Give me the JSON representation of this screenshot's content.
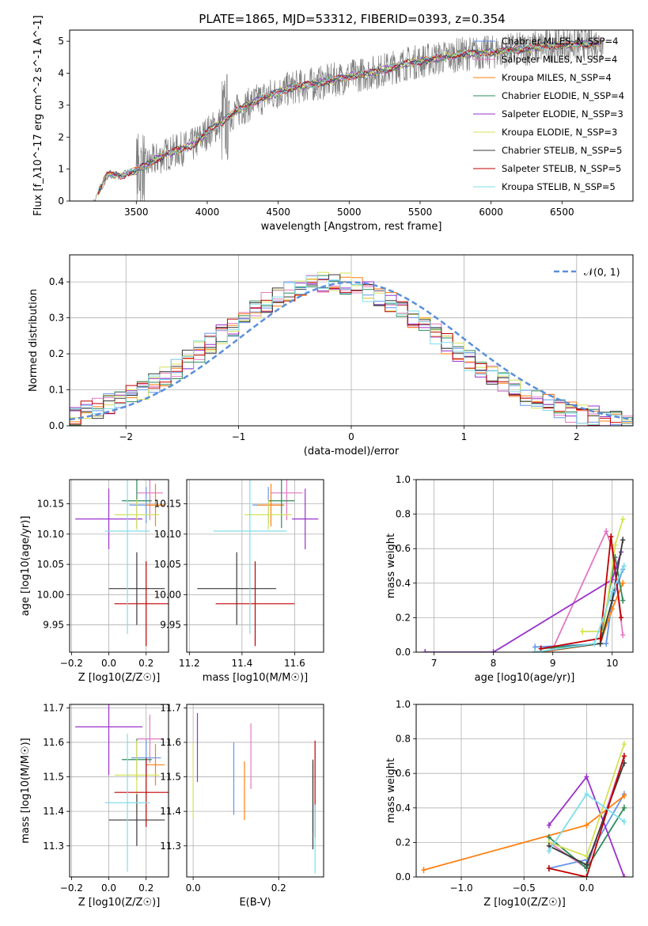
{
  "figure_title": "PLATE=1865, MJD=53312, FIBERID=0393, z=0.354",
  "series_colors": [
    "#6495ed",
    "#e377c2",
    "#ff7f0e",
    "#2e8b57",
    "#9932cc",
    "#d4e157",
    "#3a3a3a",
    "#c00000",
    "#80deea"
  ],
  "chart_data": [
    {
      "id": "spectrum",
      "type": "line",
      "title": "PLATE=1865, MJD=53312, FIBERID=0393, z=0.354",
      "xlabel": "wavelength [Angstrom, rest frame]",
      "ylabel": "Flux [f_λ10^-17 erg cm^-2 s^-1 A^-1]",
      "xlim": [
        3030,
        7000
      ],
      "ylim": [
        0,
        5.35
      ],
      "xticks": [
        "3500",
        "4000",
        "4500",
        "5000",
        "5500",
        "6000",
        "6500"
      ],
      "yticks": [
        "0",
        "1",
        "2",
        "3",
        "4",
        "5"
      ],
      "legend_position": "top-right",
      "legend": [
        "Chabrier MILES, N_SSP=4",
        "Salpeter MILES, N_SSP=4",
        "Kroupa MILES, N_SSP=4",
        "Chabrier ELODIE, N_SSP=4",
        "Salpeter ELODIE, N_SSP=3",
        "Kroupa ELODIE, N_SSP=3",
        "Chabrier STELIB, N_SSP=5",
        "Salpeter STELIB, N_SSP=5",
        "Kroupa STELIB, N_SSP=5"
      ],
      "data_trend": {
        "x": [
          3200,
          3300,
          3400,
          3500,
          3700,
          3900,
          4000,
          4200,
          4400,
          4600,
          4800,
          5000,
          5200,
          5400,
          5600,
          5800,
          6000,
          6200,
          6400,
          6600,
          6780
        ],
        "y": [
          0.0,
          0.85,
          0.8,
          0.95,
          1.45,
          1.75,
          2.15,
          2.8,
          3.25,
          3.55,
          3.7,
          3.9,
          4.05,
          4.3,
          4.45,
          4.6,
          4.65,
          4.75,
          4.85,
          4.9,
          4.95
        ]
      },
      "grid": false
    },
    {
      "id": "residuals",
      "type": "line",
      "xlabel": "(data-model)/error",
      "ylabel": "Normed distribution",
      "xlim": [
        -2.5,
        2.5
      ],
      "ylim": [
        0,
        0.475
      ],
      "xticks": [
        "−2",
        "−1",
        "0",
        "1",
        "2"
      ],
      "yticks": [
        "0.0",
        "0.1",
        "0.2",
        "0.3",
        "0.4"
      ],
      "legend": [
        "𝒩(0, 1)"
      ],
      "legend_position": "top-right",
      "curve": {
        "name": "𝒩(0, 1)",
        "mean": 0,
        "sigma": 1
      },
      "histogram_bin_width": 0.1,
      "grid": true
    },
    {
      "id": "age-vs-z",
      "type": "scatter",
      "xlabel": "Z [log10(Z/Z☉)]",
      "ylabel": "age  [log10(age/yr)]",
      "xlim": [
        -0.21,
        0.32
      ],
      "ylim": [
        9.905,
        10.19
      ],
      "xticks": [
        "−0.2",
        "0.0",
        "0.2"
      ],
      "yticks": [
        "9.95",
        "10.00",
        "10.05",
        "10.10",
        "10.15"
      ],
      "points": [
        {
          "x": 0.2,
          "y": 10.148,
          "xerr": 0.09,
          "yerr": 0.03
        },
        {
          "x": 0.22,
          "y": 10.168,
          "xerr": 0.07,
          "yerr": 0.045
        },
        {
          "x": 0.25,
          "y": 10.148,
          "xerr": 0.05,
          "yerr": 0.035
        },
        {
          "x": 0.15,
          "y": 10.155,
          "xerr": 0.08,
          "yerr": 0.045
        },
        {
          "x": 0.0,
          "y": 10.125,
          "xerr": 0.18,
          "yerr": 0.05
        },
        {
          "x": 0.15,
          "y": 10.132,
          "xerr": 0.12,
          "yerr": 0.025
        },
        {
          "x": 0.15,
          "y": 10.01,
          "xerr": 0.15,
          "yerr": 0.06
        },
        {
          "x": 0.2,
          "y": 9.985,
          "xerr": 0.17,
          "yerr": 0.07
        },
        {
          "x": 0.1,
          "y": 10.105,
          "xerr": 0.12,
          "yerr": 0.17
        }
      ],
      "grid": true
    },
    {
      "id": "age-vs-mass",
      "type": "scatter",
      "xlabel": "mass [log10(M/M☉)]",
      "ylabel": "",
      "xlim": [
        11.19,
        11.71
      ],
      "ylim": [
        9.905,
        10.19
      ],
      "xticks": [
        "11.2",
        "11.4",
        "11.6"
      ],
      "yticks": [
        "9.95",
        "10.00",
        "10.05",
        "10.10",
        "10.15"
      ],
      "points": [
        {
          "x": 11.5,
          "y": 10.148,
          "xerr": 0.06,
          "yerr": 0.03
        },
        {
          "x": 11.57,
          "y": 10.168,
          "xerr": 0.06,
          "yerr": 0.045
        },
        {
          "x": 11.51,
          "y": 10.148,
          "xerr": 0.05,
          "yerr": 0.035
        },
        {
          "x": 11.55,
          "y": 10.155,
          "xerr": 0.05,
          "yerr": 0.045
        },
        {
          "x": 11.64,
          "y": 10.125,
          "xerr": 0.05,
          "yerr": 0.05
        },
        {
          "x": 11.5,
          "y": 10.132,
          "xerr": 0.09,
          "yerr": 0.025
        },
        {
          "x": 11.38,
          "y": 10.01,
          "xerr": 0.15,
          "yerr": 0.06
        },
        {
          "x": 11.45,
          "y": 9.985,
          "xerr": 0.15,
          "yerr": 0.07
        },
        {
          "x": 11.43,
          "y": 10.105,
          "xerr": 0.14,
          "yerr": 0.17
        }
      ],
      "grid": true
    },
    {
      "id": "weight-vs-age",
      "type": "line",
      "xlabel": "age  [log10(age/yr)]",
      "ylabel": "mass weight",
      "xlim": [
        6.7,
        10.35
      ],
      "ylim": [
        0,
        1.0
      ],
      "xticks": [
        "7",
        "8",
        "9",
        "10"
      ],
      "yticks": [
        "0.0",
        "0.2",
        "0.4",
        "0.6",
        "0.8",
        "1.0"
      ],
      "series": [
        {
          "x": [
            8.7,
            9.9,
            10.0,
            10.18
          ],
          "y": [
            0.03,
            0.05,
            0.3,
            0.48
          ]
        },
        {
          "x": [
            9.0,
            9.9,
            10.0,
            10.18
          ],
          "y": [
            0.02,
            0.7,
            0.6,
            0.1
          ]
        },
        {
          "x": [
            8.8,
            9.8,
            10.0,
            10.18
          ],
          "y": [
            0.0,
            0.05,
            0.25,
            0.4
          ]
        },
        {
          "x": [
            8.8,
            9.8,
            10.05,
            10.18
          ],
          "y": [
            0.02,
            0.05,
            0.55,
            0.3
          ]
        },
        {
          "x": [
            6.85,
            8.0,
            10.0,
            10.15
          ],
          "y": [
            0.0,
            0.0,
            0.42,
            0.58
          ]
        },
        {
          "x": [
            9.5,
            9.85,
            10.05,
            10.18
          ],
          "y": [
            0.12,
            0.12,
            0.62,
            0.77
          ]
        },
        {
          "x": [
            8.7,
            9.8,
            10.0,
            10.18
          ],
          "y": [
            0.0,
            0.05,
            0.3,
            0.65
          ]
        },
        {
          "x": [
            8.8,
            9.8,
            9.98,
            10.15
          ],
          "y": [
            0.02,
            0.08,
            0.67,
            0.2
          ]
        },
        {
          "x": [
            8.7,
            9.7,
            10.0,
            10.2
          ],
          "y": [
            0.0,
            0.05,
            0.35,
            0.5
          ]
        }
      ],
      "grid": true
    },
    {
      "id": "mass-vs-z",
      "type": "scatter",
      "xlabel": "Z [log10(Z/Z☉)]",
      "ylabel": "mass [log10(M/M☉)]",
      "xlim": [
        -0.21,
        0.32
      ],
      "ylim": [
        11.21,
        11.71
      ],
      "xticks": [
        "−0.2",
        "0.0",
        "0.2"
      ],
      "yticks": [
        "11.3",
        "11.4",
        "11.5",
        "11.6",
        "11.7"
      ],
      "points": [
        {
          "x": 0.2,
          "y": 11.555,
          "xerr": 0.08,
          "yerr": 0.055
        },
        {
          "x": 0.22,
          "y": 11.61,
          "xerr": 0.07,
          "yerr": 0.07
        },
        {
          "x": 0.25,
          "y": 11.535,
          "xerr": 0.05,
          "yerr": 0.06
        },
        {
          "x": 0.15,
          "y": 11.55,
          "xerr": 0.08,
          "yerr": 0.06
        },
        {
          "x": 0.0,
          "y": 11.645,
          "xerr": 0.18,
          "yerr": 0.14
        },
        {
          "x": 0.15,
          "y": 11.505,
          "xerr": 0.12,
          "yerr": 0.1
        },
        {
          "x": 0.15,
          "y": 11.375,
          "xerr": 0.15,
          "yerr": 0.075
        },
        {
          "x": 0.2,
          "y": 11.455,
          "xerr": 0.17,
          "yerr": 0.1
        },
        {
          "x": 0.1,
          "y": 11.425,
          "xerr": 0.12,
          "yerr": 0.2
        }
      ],
      "grid": true
    },
    {
      "id": "mass-vs-ebv",
      "type": "scatter",
      "xlabel": "E(B-V)",
      "ylabel": "",
      "xlim": [
        -0.015,
        0.305
      ],
      "ylim": [
        11.21,
        11.71
      ],
      "xticks": [
        "0.0",
        "0.2"
      ],
      "yticks": [
        "11.3",
        "11.4",
        "11.5",
        "11.6",
        "11.7"
      ],
      "points": [
        {
          "x": 0.095,
          "y": 11.495,
          "yerr": 0.105
        },
        {
          "x": 0.135,
          "y": 11.56,
          "yerr": 0.095
        },
        {
          "x": 0.12,
          "y": 11.46,
          "yerr": 0.085
        },
        {
          "x": 0.28,
          "y": 11.44,
          "yerr": 0.1
        },
        {
          "x": 0.01,
          "y": 11.585,
          "yerr": 0.1
        },
        {
          "x": 0.0,
          "y": 11.49,
          "yerr": 0.11
        },
        {
          "x": 0.28,
          "y": 11.42,
          "yerr": 0.13
        },
        {
          "x": 0.285,
          "y": 11.465,
          "yerr": 0.14
        },
        {
          "x": 0.285,
          "y": 11.32,
          "yerr": 0.1
        }
      ],
      "grid": true
    },
    {
      "id": "weight-vs-z",
      "type": "line",
      "xlabel": "Z [log10(Z/Z☉)]",
      "ylabel": "mass weight",
      "xlim": [
        -1.36,
        0.37
      ],
      "ylim": [
        0,
        1.0
      ],
      "xticks": [
        "−1.0",
        "−0.5",
        "0.0"
      ],
      "yticks": [
        "0.0",
        "0.2",
        "0.4",
        "0.6",
        "0.8",
        "1.0"
      ],
      "series": [
        {
          "x": [
            -0.3,
            0.0,
            0.3
          ],
          "y": [
            0.05,
            0.1,
            0.48
          ]
        },
        {
          "x": [
            -0.3,
            0.0,
            0.3
          ],
          "y": [
            0.2,
            0.05,
            0.7
          ]
        },
        {
          "x": [
            -1.3,
            0.0,
            0.3
          ],
          "y": [
            0.04,
            0.3,
            0.47
          ]
        },
        {
          "x": [
            -0.3,
            0.0,
            0.3
          ],
          "y": [
            0.23,
            0.05,
            0.4
          ]
        },
        {
          "x": [
            -0.3,
            0.0,
            0.3
          ],
          "y": [
            0.3,
            0.58,
            0.0
          ]
        },
        {
          "x": [
            -0.3,
            0.0,
            0.3
          ],
          "y": [
            0.2,
            0.12,
            0.77
          ]
        },
        {
          "x": [
            -0.3,
            0.0,
            0.3
          ],
          "y": [
            0.18,
            0.07,
            0.66
          ]
        },
        {
          "x": [
            -0.3,
            0.0,
            0.3
          ],
          "y": [
            0.05,
            0.0,
            0.7
          ]
        },
        {
          "x": [
            -0.3,
            0.0,
            0.3
          ],
          "y": [
            0.15,
            0.48,
            0.32
          ]
        }
      ],
      "grid": true
    }
  ]
}
